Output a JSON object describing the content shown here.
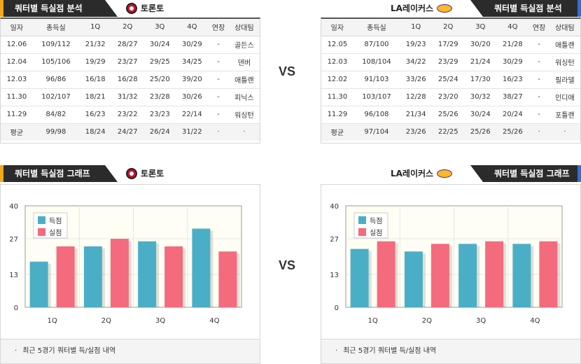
{
  "left": {
    "analysis_tab": "쿼터별 득실점 분석",
    "graph_tab": "쿼터별 득실점 그래프",
    "team": "토론토",
    "columns": [
      "일자",
      "총득실",
      "1Q",
      "2Q",
      "3Q",
      "4Q",
      "연장",
      "상대팀"
    ],
    "rows": [
      [
        "12.06",
        "109/112",
        "21/32",
        "28/27",
        "30/24",
        "30/29",
        "-",
        "골든스"
      ],
      [
        "12.04",
        "105/106",
        "19/29",
        "23/27",
        "29/25",
        "34/25",
        "-",
        "덴버"
      ],
      [
        "12.03",
        "96/86",
        "16/18",
        "16/28",
        "25/20",
        "39/20",
        "-",
        "애틀랜"
      ],
      [
        "11.30",
        "102/107",
        "18/21",
        "31/32",
        "23/28",
        "30/26",
        "-",
        "피닉스"
      ],
      [
        "11.29",
        "84/82",
        "16/23",
        "23/22",
        "23/23",
        "22/14",
        "-",
        "워싱턴"
      ]
    ],
    "average": [
      "평균",
      "99/98",
      "18/24",
      "24/27",
      "26/24",
      "31/22",
      "·",
      "·"
    ],
    "note": "최근 5경기 쿼터별 득/실점 내역"
  },
  "right": {
    "analysis_tab": "쿼터별 득실점 분석",
    "graph_tab": "쿼터별 득실점 그래프",
    "team": "LA레이커스",
    "columns": [
      "일자",
      "총득실",
      "1Q",
      "2Q",
      "3Q",
      "4Q",
      "연장",
      "상대팀"
    ],
    "rows": [
      [
        "12.05",
        "87/100",
        "19/23",
        "17/29",
        "30/20",
        "21/28",
        "-",
        "애틀랜"
      ],
      [
        "12.03",
        "108/104",
        "34/22",
        "23/29",
        "21/24",
        "30/29",
        "-",
        "워싱턴"
      ],
      [
        "12.02",
        "91/103",
        "33/26",
        "25/24",
        "17/30",
        "16/23",
        "-",
        "필라델"
      ],
      [
        "11.30",
        "103/107",
        "12/28",
        "23/20",
        "30/32",
        "38/27",
        "-",
        "인디애"
      ],
      [
        "11.29",
        "96/108",
        "21/34",
        "25/26",
        "30/24",
        "20/24",
        "-",
        "포틀랜"
      ]
    ],
    "average": [
      "평균",
      "97/104",
      "23/26",
      "22/25",
      "25/26",
      "25/26",
      "·",
      "·"
    ],
    "note": "최근 5경기 쿼터별 득/실점 내역"
  },
  "vs_label": "VS",
  "colors": {
    "scored": "#4aafc6",
    "allowed": "#f36b7c"
  },
  "chart_data": [
    {
      "type": "bar",
      "categories": [
        "1Q",
        "2Q",
        "3Q",
        "4Q"
      ],
      "series": [
        {
          "name": "득점",
          "values": [
            18,
            24,
            26,
            31
          ]
        },
        {
          "name": "실점",
          "values": [
            24,
            27,
            24,
            22
          ]
        }
      ],
      "yticks": [
        "0",
        "13",
        "27",
        "40"
      ],
      "ylim": [
        0,
        40
      ],
      "grid": true,
      "legend": "top-left"
    },
    {
      "type": "bar",
      "categories": [
        "1Q",
        "2Q",
        "3Q",
        "4Q"
      ],
      "series": [
        {
          "name": "득점",
          "values": [
            23,
            22,
            25,
            25
          ]
        },
        {
          "name": "실점",
          "values": [
            26,
            25,
            26,
            26
          ]
        }
      ],
      "yticks": [
        "0",
        "13",
        "27",
        "40"
      ],
      "ylim": [
        0,
        40
      ],
      "grid": true,
      "legend": "top-left"
    }
  ]
}
